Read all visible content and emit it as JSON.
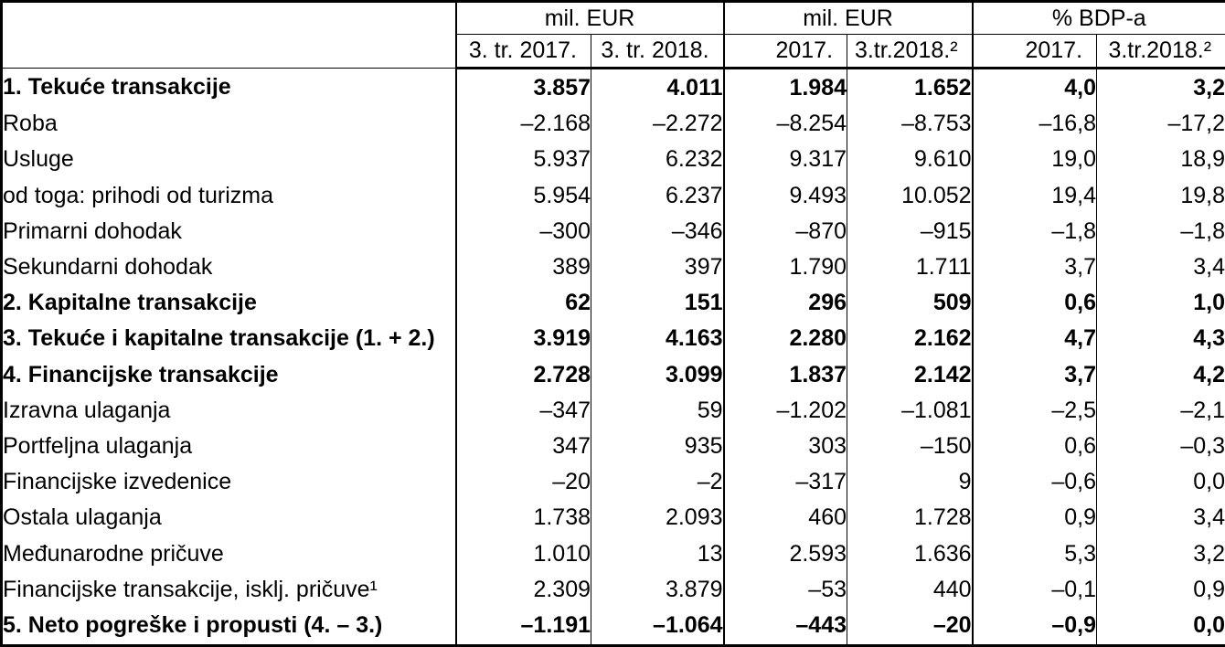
{
  "table": {
    "header": {
      "corner": "",
      "groups": [
        {
          "label": "mil. EUR"
        },
        {
          "label": "mil. EUR"
        },
        {
          "label": "% BDP-a"
        }
      ],
      "columns": [
        "3. tr. 2017.",
        "3. tr. 2018.",
        "2017.",
        "3.tr.2018.²",
        "2017.",
        "3.tr.2018.²"
      ]
    },
    "rows": [
      {
        "label": "1. Tekuće transakcije",
        "indent": 0,
        "bold": true,
        "values": [
          "3.857",
          "4.011",
          "1.984",
          "1.652",
          "4,0",
          "3,2"
        ]
      },
      {
        "label": "Roba",
        "indent": 1,
        "bold": false,
        "values": [
          "–2.168",
          "–2.272",
          "–8.254",
          "–8.753",
          "–16,8",
          "–17,2"
        ]
      },
      {
        "label": "Usluge",
        "indent": 1,
        "bold": false,
        "values": [
          "5.937",
          "6.232",
          "9.317",
          "9.610",
          "19,0",
          "18,9"
        ]
      },
      {
        "label": "od toga: prihodi od turizma",
        "indent": 2,
        "bold": false,
        "values": [
          "5.954",
          "6.237",
          "9.493",
          "10.052",
          "19,4",
          "19,8"
        ]
      },
      {
        "label": "Primarni dohodak",
        "indent": 1,
        "bold": false,
        "values": [
          "–300",
          "–346",
          "–870",
          "–915",
          "–1,8",
          "–1,8"
        ]
      },
      {
        "label": "Sekundarni dohodak",
        "indent": 1,
        "bold": false,
        "values": [
          "389",
          "397",
          "1.790",
          "1.711",
          "3,7",
          "3,4"
        ]
      },
      {
        "label": "2. Kapitalne transakcije",
        "indent": 0,
        "bold": true,
        "values": [
          "62",
          "151",
          "296",
          "509",
          "0,6",
          "1,0"
        ]
      },
      {
        "label": "3. Tekuće i kapitalne transakcije (1. + 2.)",
        "indent": 0,
        "bold": true,
        "values": [
          "3.919",
          "4.163",
          "2.280",
          "2.162",
          "4,7",
          "4,3"
        ]
      },
      {
        "label": "4. Financijske transakcije",
        "indent": 0,
        "bold": true,
        "values": [
          "2.728",
          "3.099",
          "1.837",
          "2.142",
          "3,7",
          "4,2"
        ]
      },
      {
        "label": "Izravna ulaganja",
        "indent": 1,
        "bold": false,
        "values": [
          "–347",
          "59",
          "–1.202",
          "–1.081",
          "–2,5",
          "–2,1"
        ]
      },
      {
        "label": "Portfeljna ulaganja",
        "indent": 1,
        "bold": false,
        "values": [
          "347",
          "935",
          "303",
          "–150",
          "0,6",
          "–0,3"
        ]
      },
      {
        "label": "Financijske izvedenice",
        "indent": 1,
        "bold": false,
        "values": [
          "–20",
          "–2",
          "–317",
          "9",
          "–0,6",
          "0,0"
        ]
      },
      {
        "label": "Ostala ulaganja",
        "indent": 1,
        "bold": false,
        "values": [
          "1.738",
          "2.093",
          "460",
          "1.728",
          "0,9",
          "3,4"
        ]
      },
      {
        "label": "Međunarodne pričuve",
        "indent": 1,
        "bold": false,
        "values": [
          "1.010",
          "13",
          "2.593",
          "1.636",
          "5,3",
          "3,2"
        ]
      },
      {
        "label": "Financijske transakcije, isklj. pričuve¹",
        "indent": 3,
        "bold": false,
        "values": [
          "2.309",
          "3.879",
          "–53",
          "440",
          "–0,1",
          "0,9"
        ]
      },
      {
        "label": "5. Neto pogreške i propusti (4. – 3.)",
        "indent": 0,
        "bold": true,
        "values": [
          "–1.191",
          "–1.064",
          "–443",
          "–20",
          "–0,9",
          "0,0"
        ]
      }
    ]
  }
}
